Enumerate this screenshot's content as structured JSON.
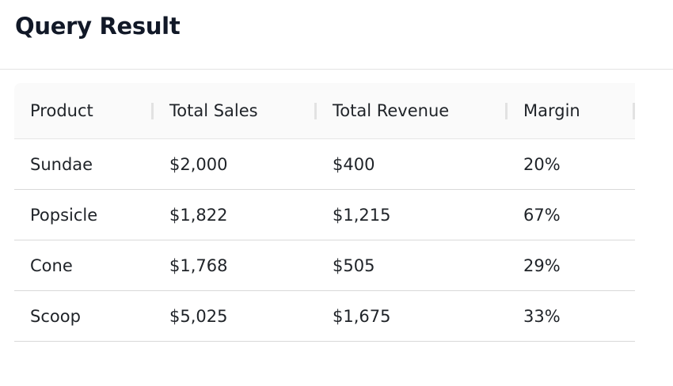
{
  "header": {
    "title": "Query Result"
  },
  "table": {
    "columns": [
      "Product",
      "Total Sales",
      "Total Revenue",
      "Margin"
    ],
    "rows": [
      [
        "Sundae",
        "$2,000",
        "$400",
        "20%"
      ],
      [
        "Popsicle",
        "$1,822",
        "$1,215",
        "67%"
      ],
      [
        "Cone",
        "$1,768",
        "$505",
        "29%"
      ],
      [
        "Scoop",
        "$5,025",
        "$1,675",
        "33%"
      ]
    ]
  }
}
